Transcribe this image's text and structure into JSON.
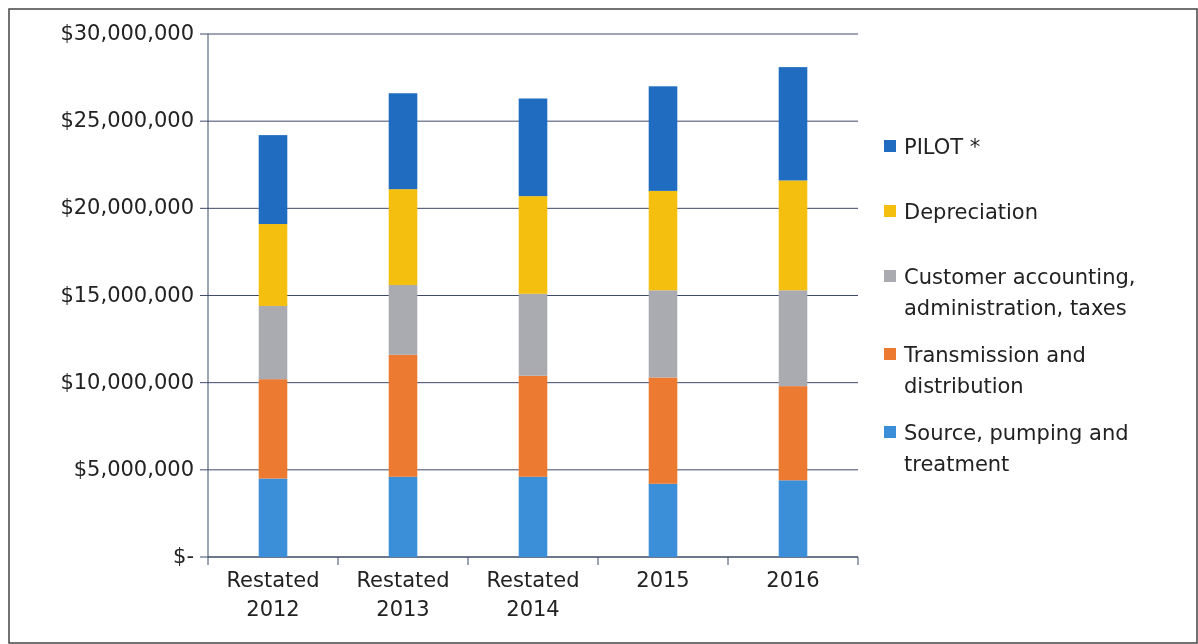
{
  "chart_data": {
    "type": "bar",
    "stacked": true,
    "categories": [
      "Restated\n2012",
      "Restated\n2013",
      "Restated\n2014",
      "2015",
      "2016"
    ],
    "series": [
      {
        "name": "Source, pumping and treatment",
        "color": "#3a8fd8",
        "values": [
          4500000,
          4600000,
          4600000,
          4200000,
          4400000
        ]
      },
      {
        "name": "Transmission and distribution",
        "color": "#ec7a30",
        "values": [
          5700000,
          7000000,
          5800000,
          6100000,
          5400000
        ]
      },
      {
        "name": "Customer accounting, administration, taxes",
        "color": "#a9abb0",
        "values": [
          4200000,
          4000000,
          4700000,
          5000000,
          5500000
        ]
      },
      {
        "name": "Depreciation",
        "color": "#f5bf10",
        "values": [
          4700000,
          5500000,
          5600000,
          5700000,
          6300000
        ]
      },
      {
        "name": "PILOT *",
        "color": "#1f6cc0",
        "values": [
          5100000,
          5500000,
          5600000,
          6000000,
          6500000
        ]
      }
    ],
    "ylim": [
      0,
      30000000
    ],
    "yticks": [
      {
        "value": 0,
        "label": "$-"
      },
      {
        "value": 5000000,
        "label": "$5,000,000"
      },
      {
        "value": 10000000,
        "label": "$10,000,000"
      },
      {
        "value": 15000000,
        "label": "$15,000,000"
      },
      {
        "value": 20000000,
        "label": "$20,000,000"
      },
      {
        "value": 25000000,
        "label": "$25,000,000"
      },
      {
        "value": 30000000,
        "label": "$30,000,000"
      }
    ],
    "grid": "y",
    "legend": "right"
  }
}
